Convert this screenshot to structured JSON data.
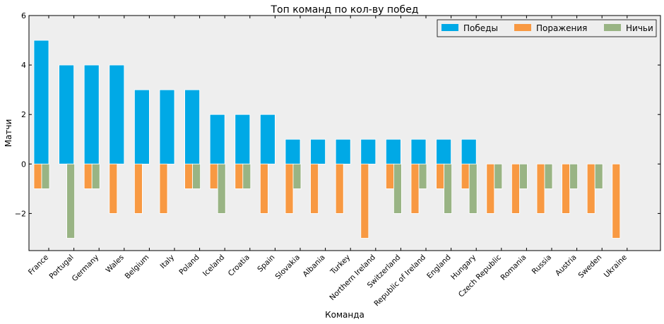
{
  "chart_data": {
    "type": "bar",
    "title": "Топ команд по кол-ву побед",
    "xlabel": "Команда",
    "ylabel": "Матчи",
    "ylim": [
      -3.5,
      6
    ],
    "yticks": [
      6,
      4,
      2,
      0,
      -2
    ],
    "ytick_labels": [
      "6",
      "4",
      "2",
      "0",
      "−2"
    ],
    "grid": false,
    "legend_position": "top-right",
    "categories": [
      "France",
      "Portugal",
      "Germany",
      "Wales",
      "Belgium",
      "Italy",
      "Poland",
      "Iceland",
      "Croatia",
      "Spain",
      "Slovakia",
      "Albania",
      "Turkey",
      "Northern Ireland",
      "Switzerland",
      "Republic of Ireland",
      "England",
      "Hungary",
      "Czech Republic",
      "Romania",
      "Russia",
      "Austria",
      "Sweden",
      "Ukraine"
    ],
    "series": [
      {
        "name": "Победы",
        "color": "#00a9e6",
        "values": [
          5,
          4,
          4,
          4,
          3,
          3,
          3,
          2,
          2,
          2,
          1,
          1,
          1,
          1,
          1,
          1,
          1,
          1,
          0,
          0,
          0,
          0,
          0,
          0
        ]
      },
      {
        "name": "Поражения",
        "color": "#f89942",
        "values": [
          -1,
          0,
          -1,
          -2,
          -2,
          -2,
          -1,
          -1,
          -1,
          -2,
          -2,
          -2,
          -2,
          -3,
          -1,
          -2,
          -1,
          -1,
          -2,
          -2,
          -2,
          -2,
          -2,
          -3
        ]
      },
      {
        "name": "Ничьи",
        "color": "#99b484",
        "values": [
          -1,
          -3,
          -1,
          0,
          0,
          0,
          -1,
          -2,
          -1,
          0,
          -1,
          0,
          0,
          0,
          -2,
          -1,
          -2,
          -2,
          -1,
          -1,
          -1,
          -1,
          -1,
          0
        ]
      }
    ]
  }
}
